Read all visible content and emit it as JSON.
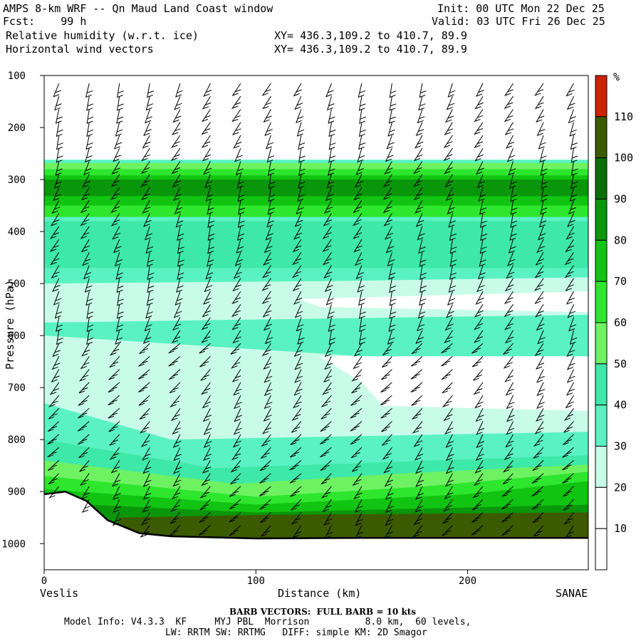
{
  "header": {
    "title": "AMPS 8-km WRF -- Qn Maud Land Coast window",
    "fcst": "Fcst:    99 h",
    "init": "Init: 00 UTC Mon 22 Dec 25",
    "valid": "Valid: 03 UTC Fri 26 Dec 25",
    "field1": "Relative humidity (w.r.t. ice)",
    "field2": "Horizontal wind vectors",
    "xy1": "XY= 436.3,109.2 to 410.7, 89.9",
    "xy2": "XY= 436.3,109.2 to 410.7, 89.9"
  },
  "footer": {
    "barb": "BARB VECTORS:  FULL BARB = 10 kts",
    "model1": "Model Info: V4.3.3  KF     MYJ PBL  Morrison          8.0 km,  60 levels,",
    "model2": "LW: RRTM SW: RRTMG   DIFF: simple KM: 2D Smagor"
  },
  "chart_data": {
    "type": "heatmap",
    "xlabel": "Distance (km)",
    "ylabel": "Pressure (hPa)",
    "x_ticks": [
      0,
      100,
      200
    ],
    "y_ticks": [
      100,
      200,
      300,
      400,
      500,
      600,
      700,
      800,
      900,
      1000
    ],
    "x_range": [
      0,
      257
    ],
    "y_range": [
      100,
      1050
    ],
    "y_axis": "pressure, increasing downward",
    "left_label": "Veslis",
    "right_label": "SANAE",
    "colorbar": {
      "unit": "%",
      "levels": [
        10,
        20,
        30,
        40,
        50,
        60,
        70,
        80,
        90,
        100,
        110
      ],
      "colors": [
        "#ffffff",
        "#ffffff",
        "#ffffff",
        "#c8fce8",
        "#5af2c2",
        "#3ee8a8",
        "#6ef262",
        "#2ee62e",
        "#12c412",
        "#0a960a",
        "#0a6e0a",
        "#3c5a00",
        "#cc2200"
      ]
    },
    "rh_bands": [
      {
        "p_top": 100,
        "p_bottom": 265,
        "rh": "below 30"
      },
      {
        "p_top": 265,
        "p_bottom": 290,
        "rh": "50-70"
      },
      {
        "p_top": 290,
        "p_bottom": 380,
        "rh": "70-90"
      },
      {
        "p_top": 380,
        "p_bottom": 500,
        "rh": "40-50"
      },
      {
        "p_top": 500,
        "p_bottom": 560,
        "rh": "30-40"
      },
      {
        "p_top": 560,
        "p_bottom": 640,
        "rh": "40-50"
      },
      {
        "p_top": 640,
        "p_bottom": 790,
        "rh": "30-40"
      },
      {
        "p_top": 790,
        "p_bottom": 850,
        "rh": "40-50"
      },
      {
        "p_top": 850,
        "p_bottom": 940,
        "rh": "60-90"
      },
      {
        "p_top": 940,
        "p_bottom": 990,
        "rh": "100-110"
      }
    ],
    "terrain_surface_hPa": [
      [
        0,
        905
      ],
      [
        10,
        900
      ],
      [
        20,
        918
      ],
      [
        30,
        955
      ],
      [
        45,
        980
      ],
      [
        60,
        986
      ],
      [
        80,
        988
      ],
      [
        100,
        990
      ],
      [
        150,
        989
      ],
      [
        200,
        989
      ],
      [
        257,
        989
      ]
    ],
    "wind_barbs": "westerly flow aloft, varying with height"
  }
}
